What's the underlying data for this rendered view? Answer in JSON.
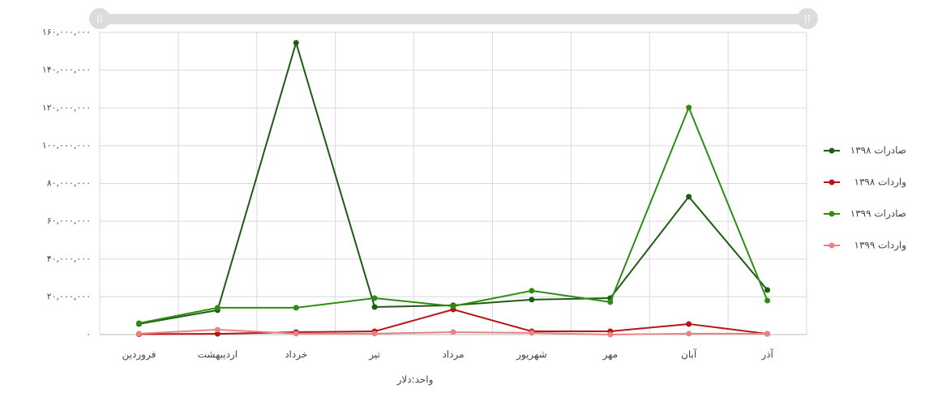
{
  "chart_data": {
    "type": "line",
    "x_label": "واحد:دلار",
    "categories": [
      "فروردین",
      "اردیبهشت",
      "خرداد",
      "تیر",
      "مرداد",
      "شهریور",
      "مهر",
      "آبان",
      "آذر"
    ],
    "series": [
      {
        "name": "صادرات ۱۳۹۸",
        "color": "#1e5c14",
        "values": [
          5600000,
          12900000,
          154500000,
          14600000,
          15500000,
          18500000,
          19300000,
          73000000,
          23600000
        ]
      },
      {
        "name": "واردات ۱۳۹۸",
        "color": "#b81414",
        "values": [
          200000,
          400000,
          1300000,
          1700000,
          13300000,
          1700000,
          1700000,
          5600000,
          400000
        ]
      },
      {
        "name": "صادرات ۱۳۹۹",
        "color": "#2f8c12",
        "values": [
          6000000,
          14200000,
          14200000,
          19300000,
          15000000,
          23200000,
          17200000,
          120200000,
          18000000
        ]
      },
      {
        "name": "واردات ۱۳۹۹",
        "color": "#e88383",
        "values": [
          500000,
          2600000,
          500000,
          500000,
          1300000,
          900000,
          0,
          500000,
          500000
        ]
      }
    ],
    "ylim": [
      0,
      160000000
    ],
    "yticks": [
      {
        "value": 0,
        "label": "۰"
      },
      {
        "value": 20000000,
        "label": "۲۰,۰۰۰,۰۰۰"
      },
      {
        "value": 40000000,
        "label": "۴۰,۰۰۰,۰۰۰"
      },
      {
        "value": 60000000,
        "label": "۶۰,۰۰۰,۰۰۰"
      },
      {
        "value": 80000000,
        "label": "۸۰,۰۰۰,۰۰۰"
      },
      {
        "value": 100000000,
        "label": "۱۰۰,۰۰۰,۰۰۰"
      },
      {
        "value": 120000000,
        "label": "۱۲۰,۰۰۰,۰۰۰"
      },
      {
        "value": 140000000,
        "label": "۱۴۰,۰۰۰,۰۰۰"
      },
      {
        "value": 160000000,
        "label": "۱۶۰,۰۰۰,۰۰۰"
      }
    ],
    "grid": true,
    "legend": "right"
  }
}
